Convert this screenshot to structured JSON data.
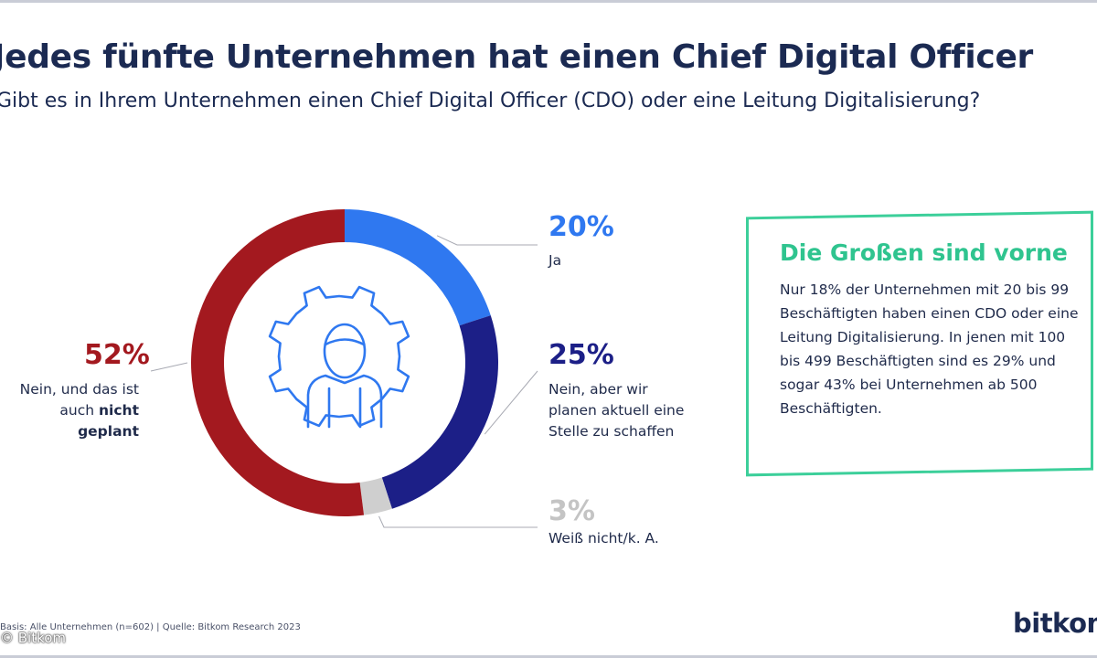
{
  "page": {
    "title": "Jedes fünfte Unternehmen hat einen Chief Digital Officer",
    "subtitle": "Gibt es in Ihrem Unternehmen einen Chief Digital Officer (CDO) oder eine Leitung Digitalisierung?"
  },
  "chart_data": {
    "type": "pie",
    "title": "Jedes fünfte Unternehmen hat einen Chief Digital Officer",
    "subtitle": "Gibt es in Ihrem Unternehmen einen Chief Digital Officer (CDO) oder eine Leitung Digitalisierung?",
    "slices": [
      {
        "label": "Ja",
        "value": 20,
        "value_label": "20%",
        "color": "#2f78f0"
      },
      {
        "label": "Nein, aber wir planen aktuell eine Stelle zu schaffen",
        "value": 25,
        "value_label": "25%",
        "color": "#1c1f87"
      },
      {
        "label": "Weiß nicht/k. A.",
        "value": 3,
        "value_label": "3%",
        "color": "#cfcfcf"
      },
      {
        "label": "Nein, und das ist auch nicht geplant",
        "label_plain": "Nein, und das ist auch",
        "label_bold": "nicht geplant",
        "value": 52,
        "value_label": "52%",
        "color": "#a3191f"
      }
    ],
    "center_icon": "gear-person-icon",
    "legend": "none"
  },
  "callout": {
    "title": "Die Großen sind vorne",
    "text": "Nur 18% der Unternehmen mit 20 bis 99 Beschäftigten haben einen CDO oder eine Leitung Digitalisierung. In jenen mit 100 bis 499 Beschäftigten sind es 29% und sogar 43% bei Unternehmen ab 500 Beschäftigten.",
    "border_color": "#3ccf9a"
  },
  "footer": {
    "source": "Basis: Alle Unternehmen (n=602) | Quelle: Bitkom Research 2023",
    "copyright": "© Bitkom",
    "logo": "bitkom"
  }
}
